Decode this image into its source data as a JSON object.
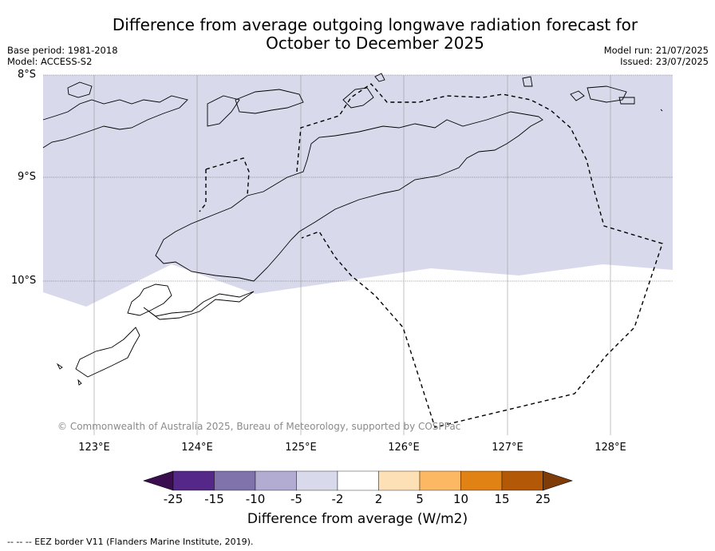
{
  "title_line1": "Difference from average outgoing longwave radiation forecast for",
  "title_line2": "October to December 2025",
  "meta_left": {
    "base_period": "Base period: 1981-2018",
    "model": "Model: ACCESS-S2"
  },
  "meta_right": {
    "model_run": "Model run: 21/07/2025",
    "issued": "Issued: 23/07/2025"
  },
  "lat_labels": [
    "8°S",
    "9°S",
    "10°S"
  ],
  "lon_labels": [
    "123°E",
    "124°E",
    "125°E",
    "126°E",
    "127°E",
    "128°E"
  ],
  "copyright": "© Commonwealth of Australia 2025, Bureau of Meteorology, supported by COSPPac",
  "colorbar": {
    "title": "Difference from average (W/m2)",
    "ticks": [
      "-25",
      "-15",
      "-10",
      "-5",
      "-2",
      "2",
      "5",
      "10",
      "15",
      "25"
    ],
    "colors": [
      "#3b0f4f",
      "#542788",
      "#8073ac",
      "#b2abd2",
      "#d8daeb",
      "#ffffff",
      "#fee0b6",
      "#fdb863",
      "#e08214",
      "#b35806",
      "#7f3b08"
    ]
  },
  "map": {
    "shaded_class": "-5 to -2",
    "shade_color": "#d8daeb",
    "eez_line": "dashed"
  },
  "footnote": "--  --  -- EEZ border V11 (Flanders Marine Institute, 2019)."
}
